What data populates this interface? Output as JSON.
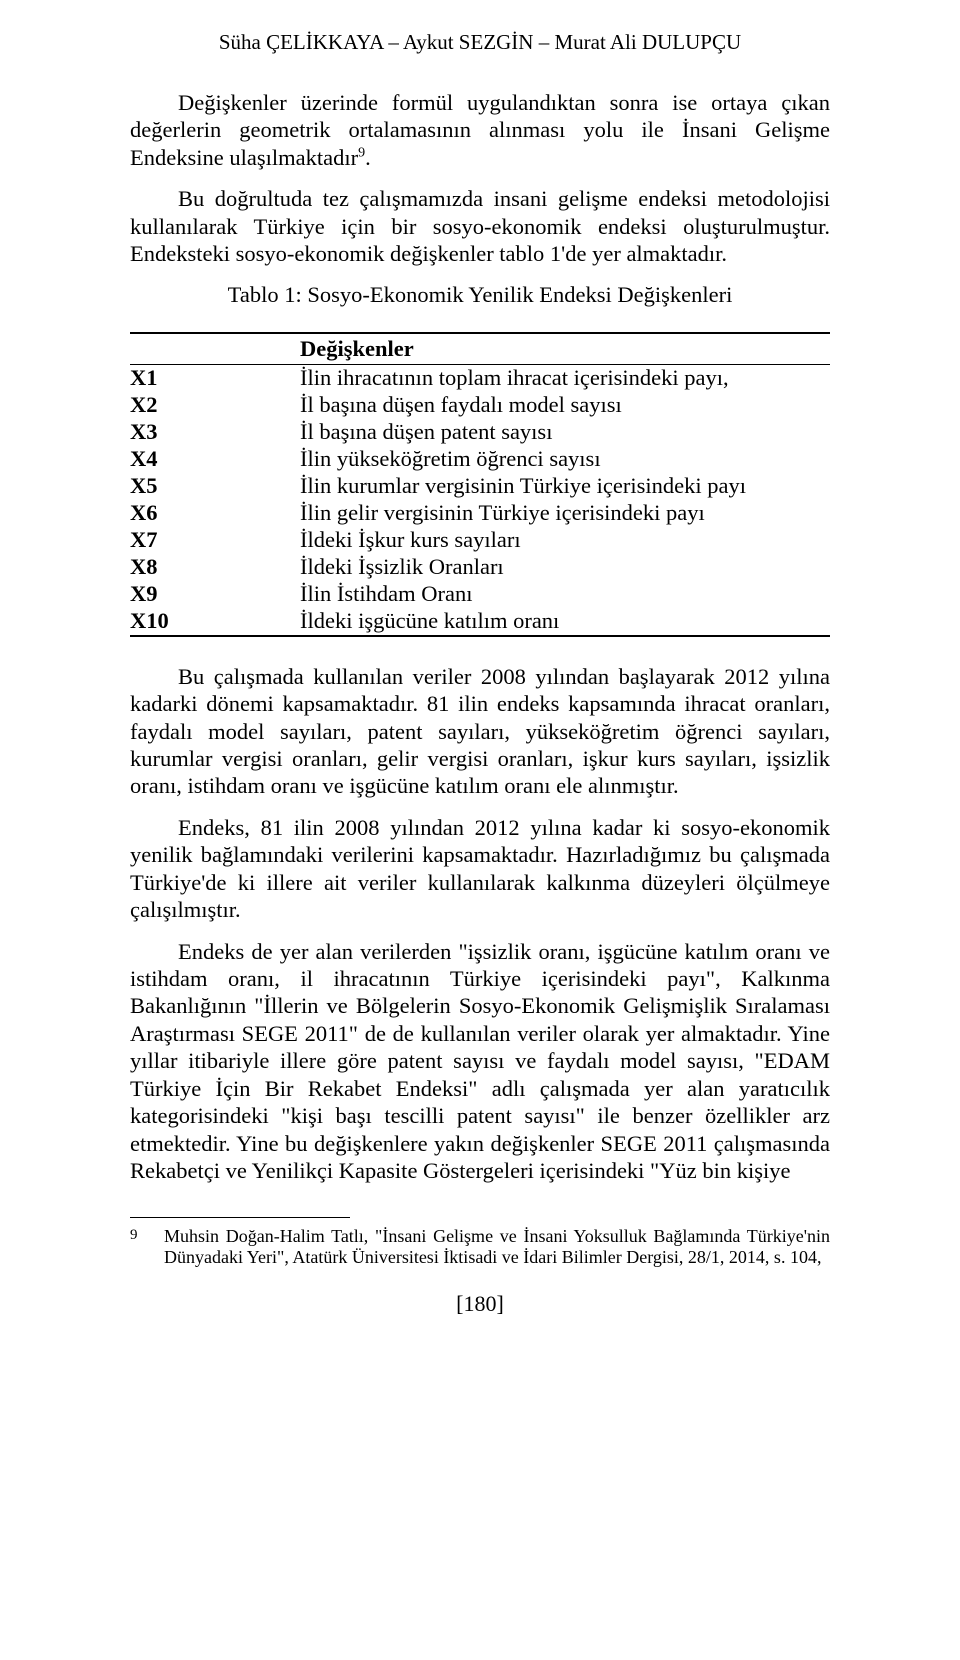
{
  "header": {
    "authors": "Süha ÇELİKKAYA – Aykut SEZGİN – Murat Ali DULUPÇU"
  },
  "paragraphs": {
    "p1": "Değişkenler üzerinde formül uygulandıktan sonra ise ortaya çıkan değerlerin geometrik ortalamasının alınması yolu ile İnsani Gelişme Endeksine ulaşılmaktadır",
    "p1_sup": "9",
    "p1_end": ".",
    "p2": "Bu doğrultuda tez çalışmamızda insani gelişme endeksi metodolojisi kullanılarak Türkiye için bir sosyo-ekonomik endeksi oluşturulmuştur. Endeksteki sosyo-ekonomik değişkenler tablo 1'de yer almaktadır.",
    "table_caption": "Tablo 1: Sosyo-Ekonomik Yenilik Endeksi Değişkenleri",
    "p3": "Bu çalışmada kullanılan veriler 2008 yılından başlayarak 2012 yılına kadarki dönemi kapsamaktadır. 81 ilin endeks kapsamında ihracat oranları, faydalı model sayıları, patent sayıları, yükseköğretim öğrenci sayıları, kurumlar vergisi oranları,  gelir vergisi oranları, işkur kurs sayıları, işsizlik oranı, istihdam oranı ve işgücüne katılım oranı ele alınmıştır.",
    "p4": "Endeks, 81 ilin 2008 yılından 2012 yılına kadar ki sosyo-ekonomik yenilik bağlamındaki verilerini kapsamaktadır. Hazırladığımız bu çalışmada Türkiye'de ki illere ait veriler kullanılarak kalkınma düzeyleri ölçülmeye çalışılmıştır.",
    "p5": "Endeks de yer alan verilerden \"işsizlik oranı, işgücüne katılım oranı ve istihdam oranı, il ihracatının Türkiye içerisindeki payı\", Kalkınma Bakanlığının \"İllerin ve Bölgelerin Sosyo-Ekonomik Gelişmişlik Sıralaması Araştırması SEGE 2011\" de de kullanılan veriler olarak yer almaktadır. Yine yıllar itibariyle illere göre patent sayısı ve faydalı model sayısı, \"EDAM Türkiye İçin Bir Rekabet Endeksi\" adlı çalışmada yer alan yaratıcılık kategorisindeki \"kişi başı tescilli patent sayısı\" ile benzer özellikler arz etmektedir. Yine bu değişkenlere yakın değişkenler SEGE 2011 çalışmasında Rekabetçi ve Yenilikçi Kapasite Göstergeleri içerisindeki \"Yüz bin kişiye"
  },
  "table": {
    "header_col1": "",
    "header_col2": "Değişkenler",
    "rows": [
      {
        "code": "X1",
        "desc": "İlin ihracatının toplam ihracat içerisindeki payı,"
      },
      {
        "code": "X2",
        "desc": "İl başına düşen faydalı model sayısı"
      },
      {
        "code": "X3",
        "desc": "İl başına düşen patent sayısı"
      },
      {
        "code": "X4",
        "desc": "İlin yükseköğretim öğrenci sayısı"
      },
      {
        "code": "X5",
        "desc": "İlin kurumlar vergisinin Türkiye içerisindeki payı"
      },
      {
        "code": "X6",
        "desc": "İlin gelir vergisinin Türkiye içerisindeki payı"
      },
      {
        "code": "X7",
        "desc": "İldeki İşkur kurs sayıları"
      },
      {
        "code": "X8",
        "desc": "İldeki İşsizlik Oranları"
      },
      {
        "code": "X9",
        "desc": "İlin İstihdam Oranı"
      },
      {
        "code": "X10",
        "desc": "İldeki işgücüne katılım oranı"
      }
    ]
  },
  "footnote": {
    "num": "9",
    "text": "Muhsin Doğan-Halim Tatlı, \"İnsani Gelişme ve İnsani Yoksulluk Bağlamında Türkiye'nin Dünyadaki Yeri\", Atatürk Üniversitesi İktisadi ve İdari Bilimler Dergisi, 28/1, 2014, s. 104,"
  },
  "page_number": "[180]"
}
